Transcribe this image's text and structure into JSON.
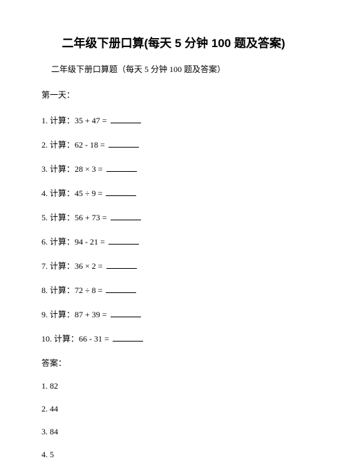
{
  "title": "二年级下册口算(每天 5 分钟 100 题及答案)",
  "subtitle": "二年级下册口算题（每天 5 分钟 100 题及答案）",
  "day_label": "第一天：",
  "problems": [
    {
      "num": "1",
      "label": "计算：",
      "expr": "35 + 47 ="
    },
    {
      "num": "2",
      "label": "计算：",
      "expr": "62 - 18 ="
    },
    {
      "num": "3",
      "label": "计算：",
      "expr": "28 × 3 ="
    },
    {
      "num": "4",
      "label": "计算：",
      "expr": "45 ÷ 9 ="
    },
    {
      "num": "5",
      "label": "计算：",
      "expr": "56 + 73 ="
    },
    {
      "num": "6",
      "label": "计算：",
      "expr": "94 - 21 ="
    },
    {
      "num": "7",
      "label": "计算：",
      "expr": "36 × 2 ="
    },
    {
      "num": "8",
      "label": "计算：",
      "expr": "72 ÷ 8 ="
    },
    {
      "num": "9",
      "label": "计算：",
      "expr": "87 + 39 ="
    },
    {
      "num": "10",
      "label": "计算：",
      "expr": "66 - 31 ="
    }
  ],
  "answer_header": "答案：",
  "answers": [
    {
      "num": "1",
      "val": "82"
    },
    {
      "num": "2",
      "val": "44"
    },
    {
      "num": "3",
      "val": "84"
    },
    {
      "num": "4",
      "val": "5"
    }
  ],
  "colors": {
    "background": "#ffffff",
    "text": "#000000"
  },
  "typography": {
    "title_fontsize": 17,
    "body_fontsize": 12,
    "title_font": "SimHei",
    "body_font": "SimSun"
  }
}
